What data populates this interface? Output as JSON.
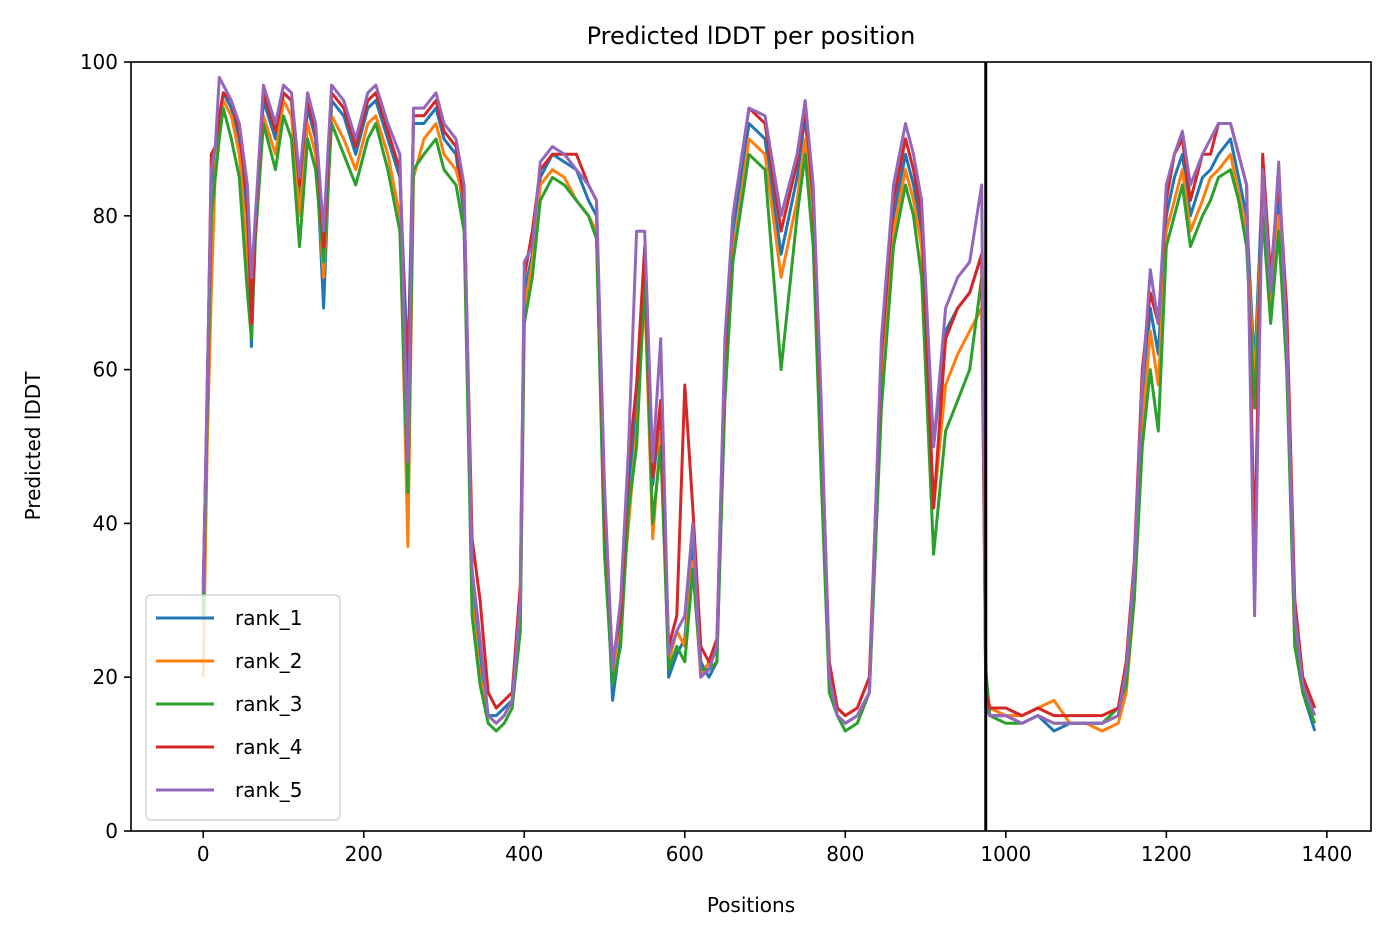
{
  "chart_data": {
    "type": "line",
    "title": "Predicted lDDT per position",
    "xlabel": "Positions",
    "ylabel": "Predicted lDDT",
    "xlim": [
      -90,
      1455
    ],
    "ylim": [
      0,
      100
    ],
    "xticks": [
      0,
      200,
      400,
      600,
      800,
      1000,
      1200,
      1400
    ],
    "yticks": [
      0,
      20,
      40,
      60,
      80,
      100
    ],
    "grid": false,
    "legend_position": "lower-left",
    "chain_boundary_x": 975,
    "x": [
      0,
      5,
      10,
      15,
      20,
      25,
      35,
      45,
      55,
      60,
      65,
      75,
      90,
      100,
      110,
      120,
      130,
      140,
      150,
      160,
      175,
      190,
      205,
      215,
      230,
      245,
      255,
      262,
      275,
      290,
      300,
      315,
      325,
      335,
      345,
      355,
      365,
      375,
      385,
      395,
      400,
      410,
      420,
      435,
      450,
      465,
      480,
      490,
      500,
      510,
      520,
      530,
      540,
      550,
      560,
      570,
      580,
      590,
      600,
      610,
      620,
      630,
      640,
      650,
      660,
      680,
      700,
      720,
      740,
      750,
      760,
      770,
      780,
      790,
      800,
      815,
      830,
      845,
      860,
      875,
      885,
      895,
      910,
      925,
      940,
      955,
      970,
      975,
      980,
      1000,
      1020,
      1040,
      1060,
      1080,
      1100,
      1120,
      1140,
      1150,
      1160,
      1170,
      1180,
      1190,
      1200,
      1210,
      1220,
      1230,
      1245,
      1255,
      1265,
      1280,
      1290,
      1300,
      1310,
      1320,
      1330,
      1340,
      1350,
      1360,
      1370,
      1385
    ],
    "series": [
      {
        "name": "rank_1",
        "color": "#1f77b4",
        "values": [
          30,
          58,
          84,
          88,
          92,
          96,
          94,
          90,
          80,
          63,
          78,
          95,
          90,
          96,
          95,
          82,
          94,
          90,
          68,
          95,
          93,
          88,
          94,
          95,
          90,
          85,
          60,
          92,
          92,
          94,
          90,
          88,
          80,
          32,
          22,
          15,
          15,
          16,
          17,
          30,
          70,
          75,
          85,
          88,
          87,
          86,
          82,
          80,
          40,
          17,
          25,
          45,
          55,
          75,
          45,
          55,
          20,
          23,
          25,
          38,
          22,
          20,
          22,
          60,
          78,
          92,
          90,
          75,
          85,
          93,
          80,
          50,
          20,
          15,
          14,
          15,
          18,
          60,
          80,
          88,
          84,
          78,
          50,
          65,
          68,
          70,
          75,
          20,
          15,
          15,
          14,
          15,
          13,
          14,
          14,
          14,
          15,
          20,
          32,
          55,
          68,
          62,
          80,
          85,
          88,
          80,
          85,
          86,
          88,
          90,
          85,
          80,
          60,
          85,
          70,
          82,
          65,
          25,
          18,
          13
        ]
      },
      {
        "name": "rank_2",
        "color": "#ff7f0e",
        "values": [
          20,
          50,
          70,
          86,
          92,
          95,
          93,
          88,
          75,
          68,
          80,
          93,
          88,
          95,
          93,
          80,
          92,
          88,
          72,
          93,
          90,
          86,
          92,
          93,
          88,
          80,
          37,
          85,
          90,
          92,
          88,
          86,
          82,
          30,
          20,
          15,
          14,
          15,
          17,
          28,
          68,
          74,
          84,
          86,
          85,
          82,
          80,
          78,
          38,
          20,
          28,
          40,
          52,
          70,
          38,
          52,
          22,
          26,
          24,
          35,
          20,
          22,
          24,
          58,
          75,
          90,
          88,
          72,
          82,
          90,
          78,
          48,
          22,
          16,
          15,
          16,
          20,
          58,
          78,
          86,
          82,
          76,
          42,
          58,
          62,
          65,
          68,
          19,
          16,
          15,
          15,
          16,
          17,
          14,
          14,
          13,
          14,
          18,
          30,
          52,
          65,
          58,
          78,
          82,
          86,
          78,
          82,
          85,
          86,
          88,
          83,
          78,
          58,
          82,
          68,
          80,
          62,
          24,
          20,
          16
        ]
      },
      {
        "name": "rank_3",
        "color": "#2ca02c",
        "values": [
          28,
          54,
          80,
          85,
          90,
          94,
          90,
          85,
          70,
          64,
          77,
          92,
          86,
          93,
          90,
          76,
          90,
          86,
          74,
          92,
          88,
          84,
          90,
          92,
          86,
          78,
          44,
          86,
          88,
          90,
          86,
          84,
          78,
          28,
          19,
          14,
          13,
          14,
          16,
          26,
          66,
          72,
          82,
          85,
          84,
          82,
          80,
          77,
          36,
          19,
          24,
          42,
          50,
          72,
          40,
          50,
          21,
          24,
          22,
          34,
          21,
          21,
          22,
          56,
          74,
          88,
          86,
          60,
          80,
          88,
          76,
          46,
          18,
          15,
          13,
          14,
          18,
          55,
          76,
          84,
          80,
          72,
          36,
          52,
          56,
          60,
          72,
          21,
          15,
          14,
          14,
          15,
          14,
          14,
          14,
          14,
          16,
          19,
          30,
          50,
          60,
          52,
          76,
          80,
          84,
          76,
          80,
          82,
          85,
          86,
          82,
          76,
          55,
          80,
          66,
          78,
          60,
          24,
          18,
          14
        ]
      },
      {
        "name": "rank_4",
        "color": "#d62728",
        "values": [
          32,
          56,
          88,
          89,
          93,
          96,
          95,
          91,
          82,
          66,
          79,
          96,
          91,
          96,
          95,
          84,
          95,
          91,
          76,
          96,
          94,
          89,
          95,
          96,
          91,
          86,
          55,
          93,
          93,
          95,
          91,
          89,
          82,
          38,
          30,
          18,
          16,
          17,
          18,
          32,
          72,
          78,
          86,
          88,
          88,
          88,
          84,
          82,
          42,
          22,
          28,
          48,
          58,
          76,
          46,
          56,
          24,
          28,
          58,
          42,
          24,
          22,
          25,
          62,
          80,
          94,
          92,
          78,
          87,
          94,
          82,
          54,
          22,
          16,
          15,
          16,
          20,
          62,
          82,
          90,
          86,
          80,
          42,
          64,
          68,
          70,
          75,
          18,
          16,
          16,
          15,
          16,
          15,
          15,
          15,
          15,
          16,
          22,
          35,
          60,
          70,
          66,
          82,
          88,
          90,
          82,
          88,
          88,
          92,
          92,
          88,
          84,
          36,
          88,
          72,
          85,
          68,
          30,
          20,
          16
        ]
      },
      {
        "name": "rank_5",
        "color": "#9467bd",
        "values": [
          31,
          57,
          86,
          89,
          98,
          97,
          95,
          92,
          84,
          72,
          80,
          97,
          92,
          97,
          96,
          85,
          96,
          92,
          78,
          97,
          95,
          90,
          96,
          97,
          92,
          88,
          48,
          94,
          94,
          96,
          92,
          90,
          84,
          34,
          25,
          15,
          14,
          15,
          17,
          30,
          74,
          76,
          87,
          89,
          88,
          86,
          84,
          82,
          45,
          21,
          30,
          50,
          78,
          78,
          48,
          64,
          23,
          26,
          28,
          40,
          20,
          21,
          24,
          64,
          80,
          94,
          93,
          80,
          88,
          95,
          84,
          56,
          20,
          15,
          14,
          15,
          18,
          64,
          84,
          92,
          88,
          82,
          50,
          68,
          72,
          74,
          84,
          16,
          15,
          15,
          14,
          15,
          14,
          14,
          14,
          14,
          15,
          21,
          34,
          58,
          73,
          66,
          84,
          88,
          91,
          84,
          88,
          90,
          92,
          92,
          88,
          84,
          28,
          86,
          70,
          87,
          64,
          28,
          19,
          15
        ]
      }
    ]
  }
}
